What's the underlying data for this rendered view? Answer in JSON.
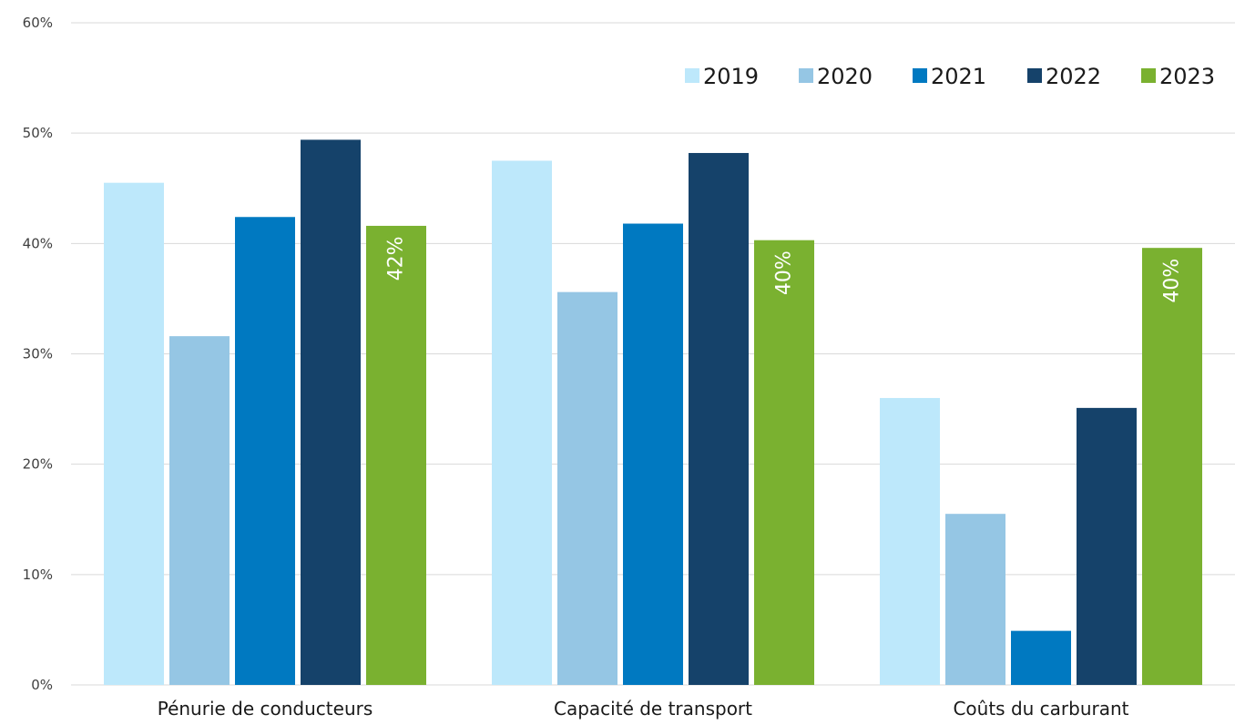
{
  "chart_data": {
    "type": "bar",
    "title": "",
    "xlabel": "",
    "ylabel": "",
    "ylim": [
      0,
      60
    ],
    "yticks": [
      "0%",
      "10%",
      "20%",
      "30%",
      "40%",
      "50%",
      "60%"
    ],
    "grid": true,
    "legend_position": "top-right",
    "categories": [
      "Pénurie de conducteurs",
      "Capacité de transport",
      "Coûts du carburant"
    ],
    "series": [
      {
        "name": "2019",
        "color": "#bde8fb",
        "values": [
          45.5,
          47.5,
          26
        ]
      },
      {
        "name": "2020",
        "color": "#95c6e4",
        "values": [
          31.6,
          35.6,
          15.5
        ]
      },
      {
        "name": "2021",
        "color": "#0079c1",
        "values": [
          42.4,
          41.8,
          4.9
        ]
      },
      {
        "name": "2022",
        "color": "#15426a",
        "values": [
          49.4,
          48.2,
          25.1
        ]
      },
      {
        "name": "2023",
        "color": "#7ab130",
        "values": [
          41.6,
          40.3,
          39.6
        ],
        "data_labels": [
          "42%",
          "40%",
          "40%"
        ]
      }
    ]
  }
}
